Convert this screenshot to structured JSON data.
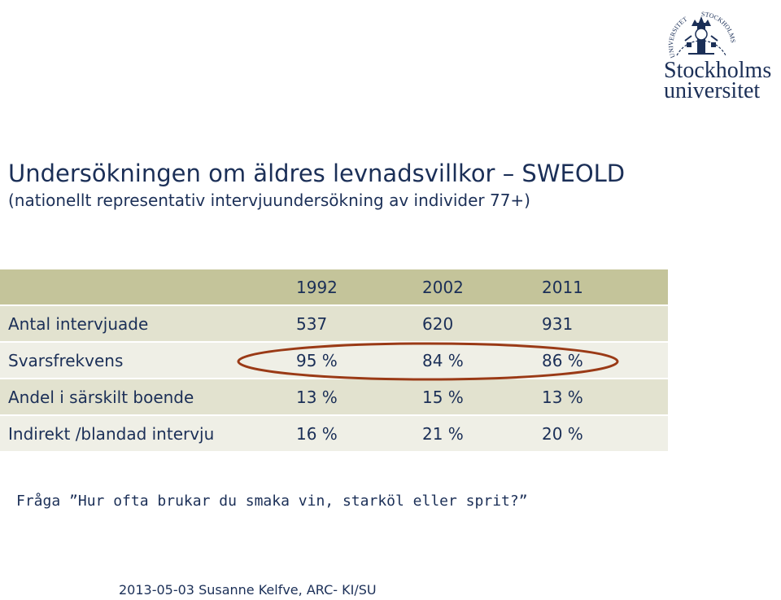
{
  "logo": {
    "icon": "university-seal-icon",
    "word1": "Stockholms",
    "word2": "universitet",
    "seal_text_left": "UNIVERSITET",
    "seal_text_right": "STOCKHOLMS",
    "color": "#1b2f57"
  },
  "title": "Undersökningen om äldres levnadsvillkor  – SWEOLD",
  "subtitle": "(nationellt representativ intervjuundersökning av individer 77+)",
  "table": {
    "header": [
      "",
      "1992",
      "2002",
      "2011"
    ],
    "rows": [
      [
        "Antal intervjuade",
        "537",
        "620",
        "931"
      ],
      [
        "Svarsfrekvens",
        "95 %",
        "84 %",
        "86 %"
      ],
      [
        "Andel i särskilt boende",
        "13 %",
        "15 %",
        "13 %"
      ],
      [
        "Indirekt /blandad intervju",
        "16 %",
        "21 %",
        "20 %"
      ]
    ],
    "highlighted_row": "Svarsfrekvens",
    "colors": {
      "header_bg": "#c4c49a",
      "row_odd_bg": "#e2e2cf",
      "row_even_bg": "#efefe6",
      "highlight_ring": "#9a3a16",
      "text": "#1b2f57"
    }
  },
  "question": "Fråga ”Hur ofta brukar du smaka vin, starköl eller sprit?”",
  "footer": "2013-05-03 Susanne Kelfve, ARC- KI/SU"
}
